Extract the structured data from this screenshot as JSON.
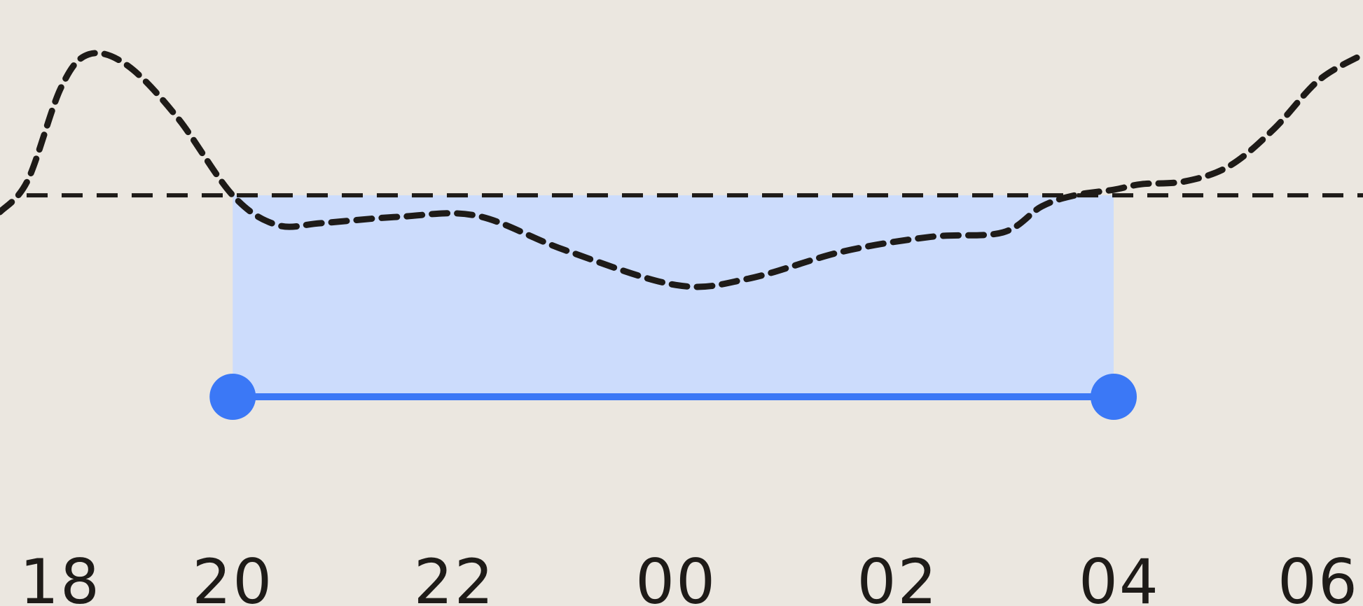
{
  "theme": {
    "background": "#ebe7e0",
    "line_color": "#1e1b18",
    "highlight_fill": "#ccdcfc",
    "range_color": "#3b78f6"
  },
  "chart_data": {
    "type": "line",
    "title": "",
    "xlabel": "",
    "ylabel": "",
    "x_unit": "hour",
    "xlim": [
      17.9,
      30.2
    ],
    "ylim": [
      0,
      10
    ],
    "x_ticks": [
      18,
      20,
      22,
      24,
      26,
      28,
      30
    ],
    "x_tick_labels": [
      "18",
      "20",
      "22",
      "00",
      "02",
      "04",
      "06"
    ],
    "grid": false,
    "legend": "none",
    "threshold": 5.3,
    "series": [
      {
        "style": "dashed",
        "x": [
          17.9,
          18.15,
          18.45,
          18.7,
          19.05,
          19.5,
          20.0,
          20.4,
          20.8,
          21.5,
          22.2,
          23.0,
          24.0,
          24.65,
          25.5,
          26.3,
          26.95,
          27.3,
          27.6,
          27.95,
          28.2,
          28.6,
          29.0,
          29.4,
          29.8,
          30.2
        ],
        "y": [
          4.85,
          5.7,
          8.2,
          9.1,
          8.8,
          7.4,
          5.3,
          4.5,
          4.55,
          4.72,
          4.75,
          3.82,
          2.88,
          3.05,
          3.78,
          4.18,
          4.3,
          5.0,
          5.3,
          5.45,
          5.6,
          5.68,
          6.1,
          7.1,
          8.4,
          9.1
        ]
      }
    ],
    "highlight_range": {
      "x_start": 20.0,
      "x_end": 27.95
    }
  }
}
